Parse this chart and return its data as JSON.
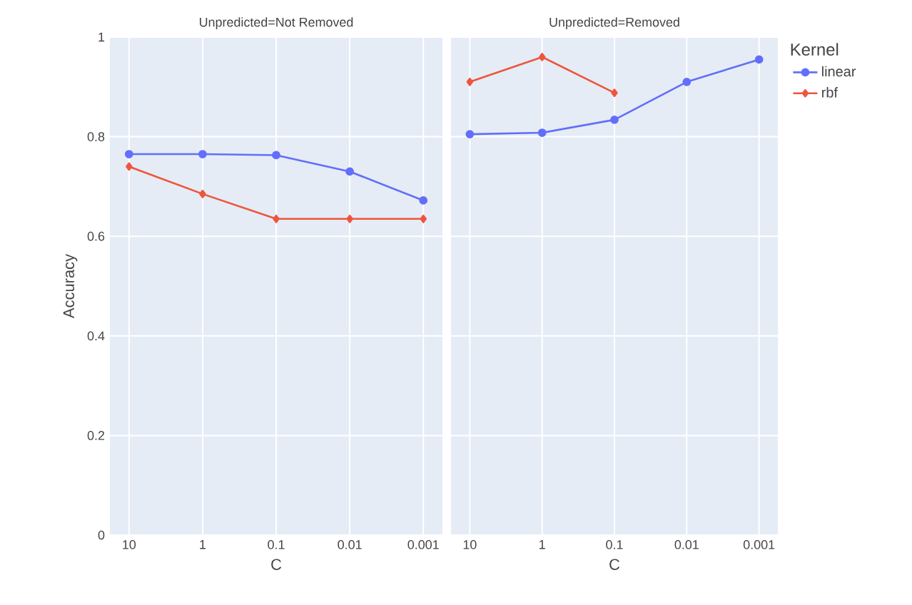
{
  "chart_data": [
    {
      "type": "line",
      "title": "Unpredicted=Not Removed",
      "xlabel": "C",
      "ylabel": "Accuracy",
      "categories": [
        "10",
        "1",
        "0.1",
        "0.01",
        "0.001"
      ],
      "ylim": [
        0,
        1
      ],
      "yticks": [
        0,
        0.2,
        0.4,
        0.6,
        0.8,
        1
      ],
      "grid": true,
      "legend": false,
      "series": [
        {
          "color": "#636efa",
          "marker": "circle",
          "values": [
            0.765,
            0.765,
            0.763,
            0.73,
            0.672
          ]
        },
        {
          "color": "#ef553b",
          "marker": "diamond",
          "values": [
            0.74,
            0.685,
            0.635,
            0.635,
            0.635
          ]
        }
      ]
    },
    {
      "type": "line",
      "title": "Unpredicted=Removed",
      "xlabel": "C",
      "categories": [
        "10",
        "1",
        "0.1",
        "0.01",
        "0.001"
      ],
      "ylim": [
        0,
        1
      ],
      "yticks": [
        0,
        0.2,
        0.4,
        0.6,
        0.8,
        1
      ],
      "grid": true,
      "tick_labels": "x",
      "legend": "top right",
      "legend_title": "Kernel",
      "series": [
        {
          "name": "linear",
          "color": "#636efa",
          "marker": "circle",
          "values": [
            0.805,
            0.808,
            0.834,
            0.91,
            0.955
          ]
        },
        {
          "name": "rbf",
          "color": "#ef553b",
          "marker": "diamond",
          "values": [
            0.91,
            0.96,
            0.888,
            null,
            null
          ]
        }
      ]
    }
  ]
}
